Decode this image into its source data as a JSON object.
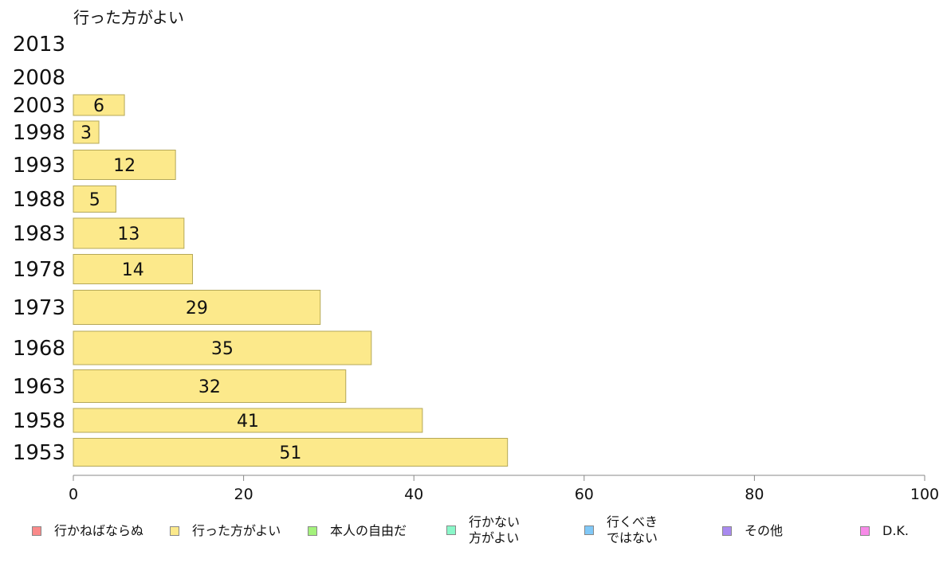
{
  "chart_data": {
    "type": "bar",
    "orientation": "horizontal",
    "title": "行った方がよい",
    "categories": [
      "2013",
      "2008",
      "2003",
      "1998",
      "1993",
      "1988",
      "1983",
      "1978",
      "1973",
      "1968",
      "1963",
      "1958",
      "1953"
    ],
    "values": [
      null,
      null,
      6,
      3,
      12,
      5,
      13,
      14,
      29,
      35,
      32,
      41,
      51
    ],
    "xlim": [
      0,
      100
    ],
    "xticks": [
      "0",
      "20",
      "40",
      "60",
      "80",
      "100"
    ],
    "bar_color": "#fce98b",
    "bar_border": "#b5a858",
    "grid": false,
    "legend_position": "bottom",
    "legend": [
      {
        "label": "行かねばならぬ",
        "color": "#fa8a8a"
      },
      {
        "label": "行った方がよい",
        "color": "#fce98b"
      },
      {
        "label": "本人の自由だ",
        "color": "#a4f27c"
      },
      {
        "label": "行かない\n方がよい",
        "color": "#8af7c9"
      },
      {
        "label": "行くべき\nではない",
        "color": "#80c8f7"
      },
      {
        "label": "その他",
        "color": "#a98af0"
      },
      {
        "label": "D.K.",
        "color": "#f78ae8"
      }
    ]
  }
}
